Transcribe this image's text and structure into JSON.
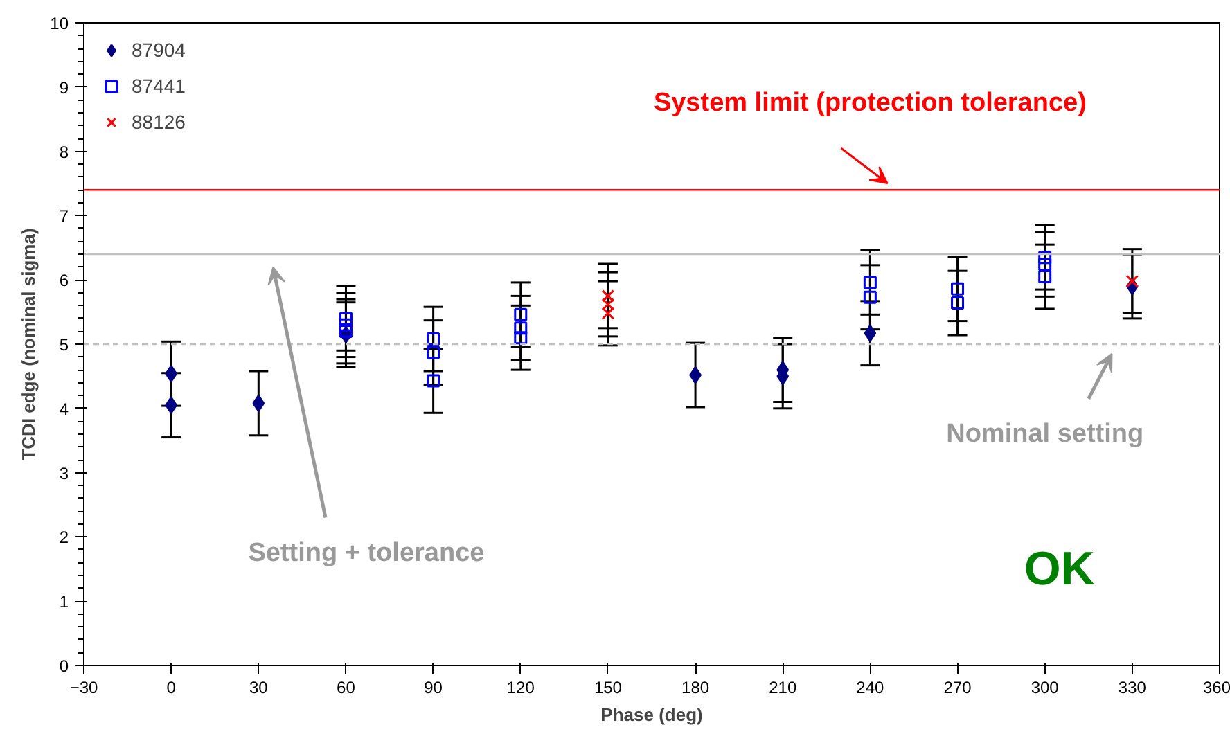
{
  "chart_data": {
    "type": "scatter",
    "xlabel": "Phase (deg)",
    "ylabel": "TCDI edge (nominal sigma)",
    "xlim": [
      -30,
      360
    ],
    "xticks": [
      -30,
      0,
      30,
      60,
      90,
      120,
      150,
      180,
      210,
      240,
      270,
      300,
      330,
      360
    ],
    "ylim": [
      0,
      10
    ],
    "yticks": [
      0,
      1,
      2,
      3,
      4,
      5,
      6,
      7,
      8,
      9,
      10
    ],
    "grid": false,
    "legend": "top left",
    "series": [
      {
        "name": "87904",
        "color": "#000080",
        "marker": "diamond",
        "x": [
          0,
          0,
          30,
          60,
          180,
          210,
          210,
          240,
          330
        ],
        "values": [
          4.54,
          4.05,
          4.08,
          5.15,
          4.52,
          4.6,
          4.5,
          5.17,
          5.9
        ],
        "errors": [
          0.5,
          0.5,
          0.5,
          0.5,
          0.5,
          0.5,
          0.5,
          0.5,
          0.5
        ]
      },
      {
        "name": "87441",
        "color": "#0000ff",
        "marker": "square",
        "x": [
          60,
          60,
          60,
          90,
          90,
          90,
          120,
          120,
          120,
          240,
          240,
          270,
          270,
          300,
          300,
          300
        ],
        "values": [
          5.4,
          5.3,
          5.2,
          5.08,
          4.87,
          4.43,
          5.46,
          5.25,
          5.1,
          5.96,
          5.73,
          5.86,
          5.64,
          6.35,
          6.24,
          6.05
        ],
        "errors": [
          0.5,
          0.5,
          0.5,
          0.5,
          0.5,
          0.5,
          0.5,
          0.5,
          0.5,
          0.5,
          0.5,
          0.5,
          0.5,
          0.5,
          0.5,
          0.5
        ]
      },
      {
        "name": "88126",
        "color": "#ff0000",
        "marker": "cross",
        "x": [
          150,
          150,
          150,
          330
        ],
        "values": [
          5.75,
          5.62,
          5.48,
          5.98
        ],
        "errors": [
          0.5,
          0.5,
          0.5,
          0.5
        ]
      }
    ],
    "ref_lines": [
      {
        "axis": "y",
        "value": 7.4,
        "color": "#ff0000",
        "line_style": "solid"
      },
      {
        "axis": "y",
        "value": 6.4,
        "color": "#c0c0c0",
        "line_style": "solid"
      },
      {
        "axis": "y",
        "value": 5,
        "color": "#c0c0c0",
        "line_style": "dashed"
      }
    ],
    "annotations": [
      "System limit (protection tolerance)",
      "Setting + tolerance",
      "Nominal setting",
      "OK"
    ]
  }
}
